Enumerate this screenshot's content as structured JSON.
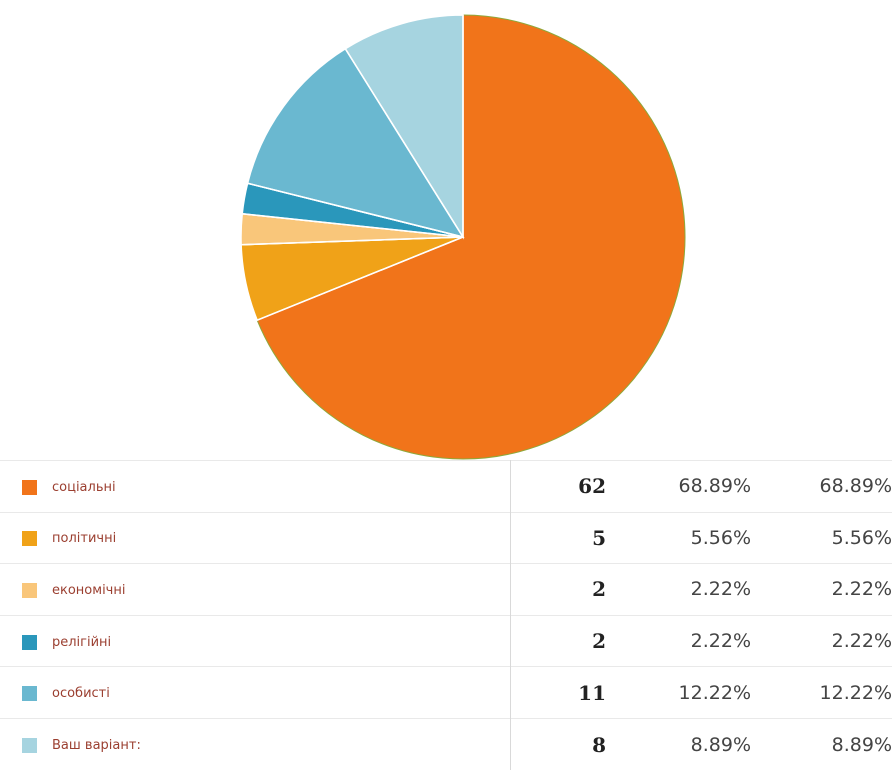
{
  "chart_data": {
    "type": "pie",
    "slices": [
      {
        "label": "соціальні",
        "count": 62,
        "percent": "68.89%",
        "percent2": "68.89%",
        "color": "#f1741a"
      },
      {
        "label": "політичні",
        "count": 5,
        "percent": "5.56%",
        "percent2": "5.56%",
        "color": "#f0a218"
      },
      {
        "label": "економічні",
        "count": 2,
        "percent": "2.22%",
        "percent2": "2.22%",
        "color": "#f9c67a"
      },
      {
        "label": "релігійні",
        "count": 2,
        "percent": "2.22%",
        "percent2": "2.22%",
        "color": "#2a97bb"
      },
      {
        "label": "особисті",
        "count": 11,
        "percent": "12.22%",
        "percent2": "12.22%",
        "color": "#6ab8d0"
      },
      {
        "label": "Ваш варіант:",
        "count": 8,
        "percent": "8.89%",
        "percent2": "8.89%",
        "color": "#a6d4e0"
      }
    ],
    "values": [
      62,
      5,
      2,
      2,
      11,
      8
    ],
    "categories": [
      "соціальні",
      "політичні",
      "економічні",
      "релігійні",
      "особисті",
      "Ваш варіант:"
    ],
    "title": ""
  }
}
